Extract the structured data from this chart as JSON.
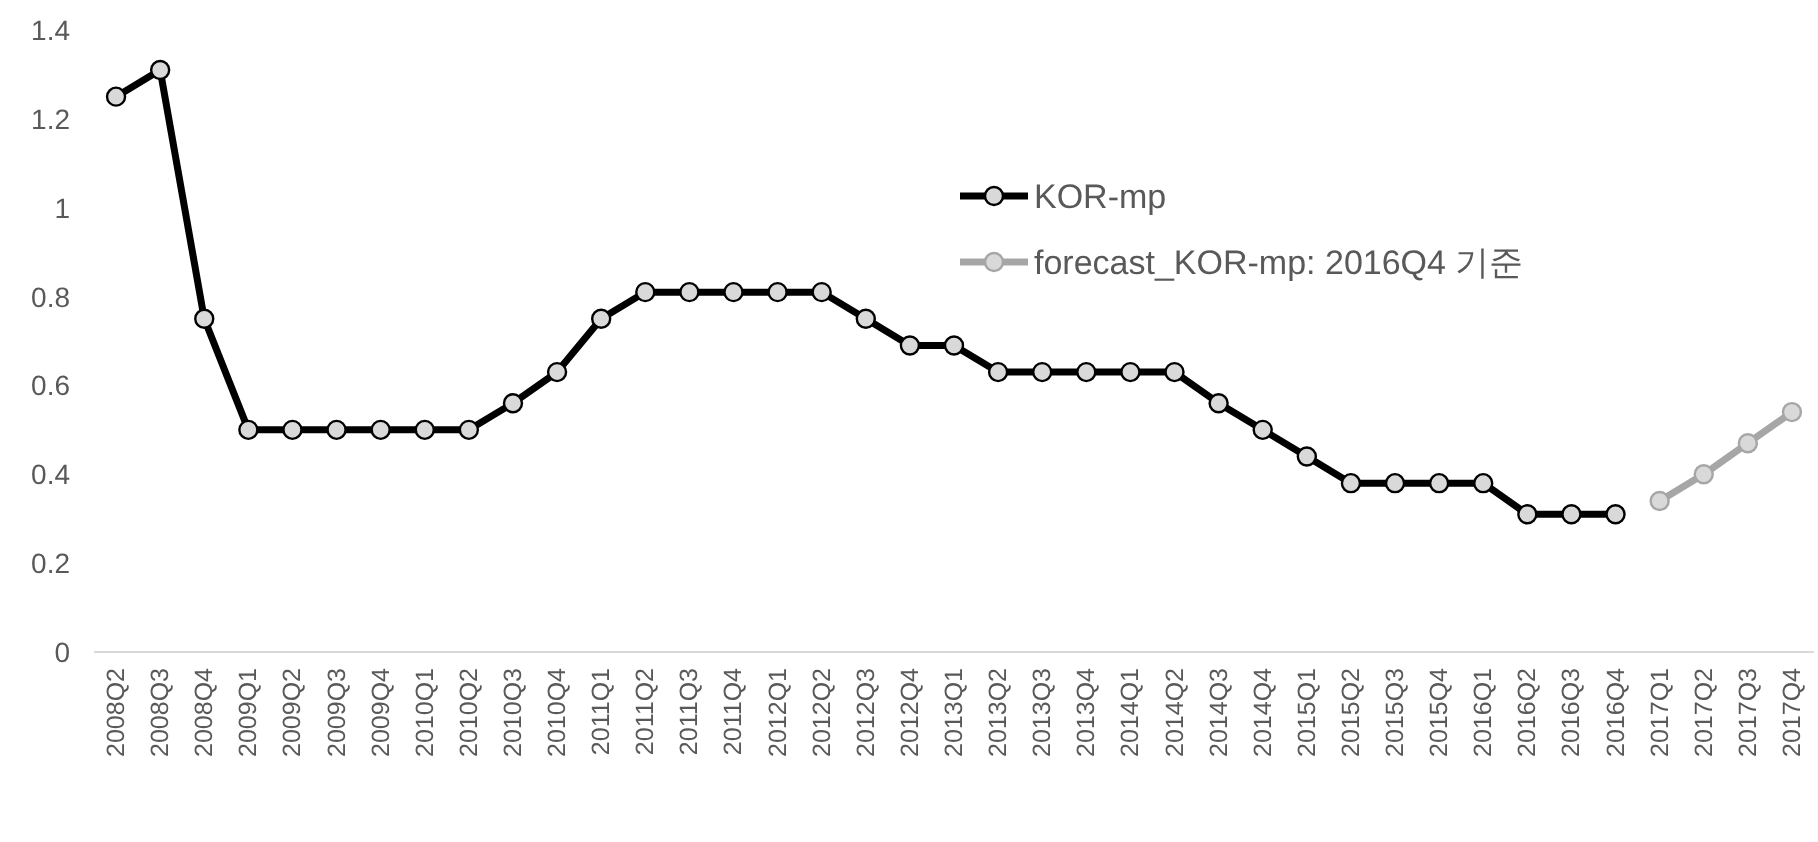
{
  "chart_data": {
    "type": "line",
    "categories": [
      "2008Q2",
      "2008Q3",
      "2008Q4",
      "2009Q1",
      "2009Q2",
      "2009Q3",
      "2009Q4",
      "2010Q1",
      "2010Q2",
      "2010Q3",
      "2010Q4",
      "2011Q1",
      "2011Q2",
      "2011Q3",
      "2011Q4",
      "2012Q1",
      "2012Q2",
      "2012Q3",
      "2012Q4",
      "2013Q1",
      "2013Q2",
      "2013Q3",
      "2013Q4",
      "2014Q1",
      "2014Q2",
      "2014Q3",
      "2014Q4",
      "2015Q1",
      "2015Q2",
      "2015Q3",
      "2015Q4",
      "2016Q1",
      "2016Q2",
      "2016Q3",
      "2016Q4",
      "2017Q1",
      "2017Q2",
      "2017Q3",
      "2017Q4"
    ],
    "series": [
      {
        "name": "KOR-mp",
        "color": "#000000",
        "values": [
          1.25,
          1.31,
          0.75,
          0.5,
          0.5,
          0.5,
          0.5,
          0.5,
          0.5,
          0.56,
          0.63,
          0.75,
          0.81,
          0.81,
          0.81,
          0.81,
          0.81,
          0.75,
          0.69,
          0.69,
          0.63,
          0.63,
          0.63,
          0.63,
          0.63,
          0.56,
          0.5,
          0.44,
          0.38,
          0.38,
          0.38,
          0.38,
          0.31,
          0.31,
          0.31,
          null,
          null,
          null,
          null
        ]
      },
      {
        "name": "forecast_KOR-mp: 2016Q4 기준",
        "color": "#a6a6a6",
        "values": [
          null,
          null,
          null,
          null,
          null,
          null,
          null,
          null,
          null,
          null,
          null,
          null,
          null,
          null,
          null,
          null,
          null,
          null,
          null,
          null,
          null,
          null,
          null,
          null,
          null,
          null,
          null,
          null,
          null,
          null,
          null,
          null,
          null,
          null,
          null,
          0.34,
          0.4,
          0.47,
          0.54
        ]
      }
    ],
    "ylim": [
      0,
      1.4
    ],
    "yticks": [
      0,
      0.2,
      0.4,
      0.6,
      0.8,
      1,
      1.2,
      1.4
    ],
    "legend": "top right",
    "marker": "circle"
  }
}
